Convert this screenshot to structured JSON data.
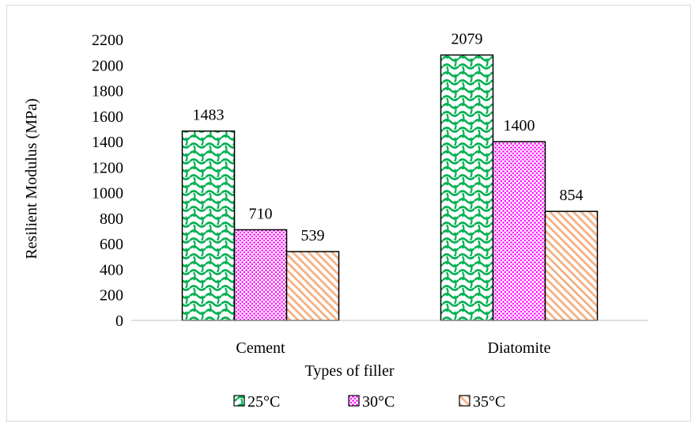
{
  "chart_data": {
    "type": "bar",
    "title": "",
    "xlabel": "Types of filler",
    "ylabel": "Resilient Modulus (MPa)",
    "ylim": [
      0,
      2200
    ],
    "ytick_step": 200,
    "grid": false,
    "legend_position": "bottom",
    "categories": [
      "Cement",
      "Diatomite"
    ],
    "series": [
      {
        "name": "25°C",
        "values": [
          1483,
          2079
        ],
        "color": "#00b050",
        "pattern": "scale"
      },
      {
        "name": "30°C",
        "values": [
          710,
          1400
        ],
        "color": "#ff00ff",
        "pattern": "dots"
      },
      {
        "name": "35°C",
        "values": [
          539,
          854
        ],
        "color": "#f4b183",
        "pattern": "diagonal"
      }
    ]
  }
}
